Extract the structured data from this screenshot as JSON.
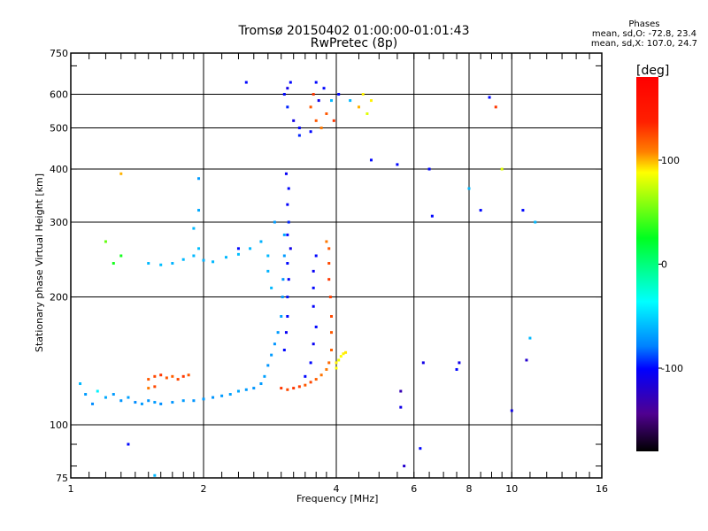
{
  "chart_data": {
    "type": "scatter",
    "title": "Tromsø 20150402 01:00:00-01:01:43",
    "subtitle": "RwPretec (8p)",
    "stats": {
      "heading": "Phases",
      "line_o": "mean, sd,O: -72.8, 23.4",
      "line_x": "mean, sd,X: 107.0, 24.7"
    },
    "xlabel": "Frequency [MHz]",
    "ylabel": "Stationary phase Virtual Height [km]",
    "xscale": "log",
    "yscale": "log",
    "xlim": [
      1,
      16
    ],
    "ylim": [
      75,
      750
    ],
    "xticks": [
      {
        "v": 1,
        "label": "1"
      },
      {
        "v": 2,
        "label": "2"
      },
      {
        "v": 4,
        "label": "4"
      },
      {
        "v": 6,
        "label": "6"
      },
      {
        "v": 8,
        "label": "8"
      },
      {
        "v": 10,
        "label": "10"
      },
      {
        "v": 16,
        "label": "16"
      }
    ],
    "xgrid": [
      2,
      4,
      6,
      8,
      10
    ],
    "yticks": [
      {
        "v": 75,
        "label": "75"
      },
      {
        "v": 100,
        "label": "100"
      },
      {
        "v": 200,
        "label": "200"
      },
      {
        "v": 300,
        "label": "300"
      },
      {
        "v": 400,
        "label": "400"
      },
      {
        "v": 500,
        "label": "500"
      },
      {
        "v": 600,
        "label": "600"
      },
      {
        "v": 750,
        "label": "750"
      }
    ],
    "ygrid": [
      100,
      200,
      300,
      400,
      500,
      600
    ],
    "colorbar": {
      "label": "[deg]",
      "range": [
        -180,
        180
      ],
      "ticks": [
        {
          "v": 100,
          "label": "100"
        },
        {
          "v": 0,
          "label": "0"
        },
        {
          "v": -100,
          "label": "-100"
        }
      ]
    },
    "points_fields": [
      "frequency_MHz",
      "height_km",
      "phase_deg"
    ],
    "points": [
      [
        1.05,
        125,
        -60
      ],
      [
        1.08,
        118,
        -70
      ],
      [
        1.12,
        112,
        -75
      ],
      [
        1.15,
        120,
        -40
      ],
      [
        1.2,
        116,
        -65
      ],
      [
        1.25,
        118,
        -70
      ],
      [
        1.3,
        114,
        -72
      ],
      [
        1.35,
        116,
        -68
      ],
      [
        1.4,
        113,
        -75
      ],
      [
        1.45,
        112,
        -70
      ],
      [
        1.5,
        114,
        -72
      ],
      [
        1.55,
        113,
        -70
      ],
      [
        1.6,
        112,
        -74
      ],
      [
        1.7,
        113,
        -72
      ],
      [
        1.8,
        114,
        -70
      ],
      [
        1.9,
        114,
        -72
      ],
      [
        2.0,
        115,
        -70
      ],
      [
        2.1,
        116,
        -72
      ],
      [
        2.2,
        117,
        -70
      ],
      [
        2.3,
        118,
        -68
      ],
      [
        2.4,
        120,
        -66
      ],
      [
        2.5,
        121,
        -70
      ],
      [
        2.6,
        122,
        -72
      ],
      [
        2.7,
        125,
        -70
      ],
      [
        2.75,
        130,
        -68
      ],
      [
        2.8,
        138,
        -72
      ],
      [
        2.85,
        146,
        -70
      ],
      [
        2.9,
        155,
        -72
      ],
      [
        2.95,
        165,
        -70
      ],
      [
        3.0,
        180,
        -68
      ],
      [
        3.02,
        200,
        -70
      ],
      [
        3.03,
        220,
        -72
      ],
      [
        3.05,
        250,
        -70
      ],
      [
        3.05,
        280,
        -66
      ],
      [
        2.9,
        300,
        -70
      ],
      [
        1.5,
        128,
        120
      ],
      [
        1.55,
        130,
        125
      ],
      [
        1.6,
        131,
        130
      ],
      [
        1.65,
        129,
        120
      ],
      [
        1.7,
        130,
        118
      ],
      [
        1.75,
        128,
        125
      ],
      [
        1.8,
        130,
        130
      ],
      [
        1.85,
        131,
        120
      ],
      [
        1.5,
        122,
        110
      ],
      [
        1.55,
        123,
        125
      ],
      [
        3.0,
        122,
        130
      ],
      [
        3.1,
        121,
        125
      ],
      [
        3.2,
        122,
        130
      ],
      [
        3.3,
        123,
        128
      ],
      [
        3.4,
        124,
        120
      ],
      [
        3.5,
        126,
        125
      ],
      [
        3.6,
        128,
        118
      ],
      [
        3.7,
        131,
        112
      ],
      [
        3.8,
        135,
        110
      ],
      [
        3.85,
        140,
        115
      ],
      [
        3.9,
        150,
        118
      ],
      [
        3.9,
        165,
        120
      ],
      [
        3.9,
        180,
        125
      ],
      [
        3.88,
        200,
        128
      ],
      [
        3.85,
        220,
        130
      ],
      [
        3.85,
        240,
        125
      ],
      [
        3.85,
        260,
        120
      ],
      [
        3.8,
        270,
        110
      ],
      [
        4.0,
        140,
        90
      ],
      [
        4.05,
        142,
        85
      ],
      [
        4.1,
        145,
        88
      ],
      [
        4.15,
        147,
        90
      ],
      [
        4.2,
        148,
        92
      ],
      [
        4.0,
        136,
        88
      ],
      [
        3.05,
        150,
        -100
      ],
      [
        3.08,
        165,
        -105
      ],
      [
        3.1,
        180,
        -100
      ],
      [
        3.1,
        200,
        -98
      ],
      [
        3.12,
        220,
        -105
      ],
      [
        3.1,
        240,
        -100
      ],
      [
        3.15,
        260,
        -110
      ],
      [
        3.1,
        280,
        -100
      ],
      [
        3.12,
        300,
        -95
      ],
      [
        3.1,
        330,
        -102
      ],
      [
        3.12,
        360,
        -100
      ],
      [
        3.08,
        390,
        -105
      ],
      [
        3.5,
        140,
        -100
      ],
      [
        3.55,
        155,
        -105
      ],
      [
        3.6,
        170,
        -100
      ],
      [
        3.55,
        190,
        -102
      ],
      [
        3.55,
        210,
        -100
      ],
      [
        3.55,
        230,
        -105
      ],
      [
        3.6,
        250,
        -100
      ],
      [
        3.4,
        130,
        -100
      ],
      [
        1.5,
        240,
        -60
      ],
      [
        1.6,
        238,
        -58
      ],
      [
        1.7,
        240,
        -62
      ],
      [
        1.8,
        245,
        -60
      ],
      [
        1.9,
        250,
        -60
      ],
      [
        1.95,
        260,
        -58
      ],
      [
        2.0,
        244,
        -62
      ],
      [
        2.1,
        242,
        -60
      ],
      [
        2.25,
        248,
        -60
      ],
      [
        2.4,
        252,
        -58
      ],
      [
        2.55,
        260,
        -60
      ],
      [
        2.7,
        270,
        -62
      ],
      [
        2.8,
        250,
        -60
      ],
      [
        2.8,
        230,
        -62
      ],
      [
        2.85,
        210,
        -60
      ],
      [
        1.9,
        290,
        -60
      ],
      [
        1.95,
        320,
        -65
      ],
      [
        1.95,
        380,
        -70
      ],
      [
        3.05,
        600,
        -100
      ],
      [
        3.1,
        620,
        -110
      ],
      [
        3.15,
        640,
        -100
      ],
      [
        3.1,
        560,
        -95
      ],
      [
        3.2,
        520,
        -110
      ],
      [
        3.3,
        500,
        -100
      ],
      [
        3.5,
        560,
        120
      ],
      [
        3.55,
        600,
        130
      ],
      [
        3.6,
        640,
        -100
      ],
      [
        3.65,
        580,
        -110
      ],
      [
        3.6,
        520,
        120
      ],
      [
        3.7,
        500,
        110
      ],
      [
        3.8,
        540,
        120
      ],
      [
        3.75,
        620,
        -100
      ],
      [
        3.9,
        580,
        -60
      ],
      [
        3.95,
        520,
        130
      ],
      [
        4.05,
        600,
        -100
      ],
      [
        4.3,
        580,
        -60
      ],
      [
        4.5,
        560,
        100
      ],
      [
        4.6,
        600,
        90
      ],
      [
        4.7,
        540,
        80
      ],
      [
        4.8,
        580,
        90
      ],
      [
        3.3,
        480,
        -95
      ],
      [
        3.5,
        490,
        -100
      ],
      [
        1.3,
        390,
        100
      ],
      [
        1.3,
        250,
        30
      ],
      [
        1.2,
        270,
        50
      ],
      [
        1.25,
        240,
        30
      ],
      [
        1.35,
        90,
        -100
      ],
      [
        1.55,
        76,
        -60
      ],
      [
        2.5,
        640,
        -100
      ],
      [
        2.4,
        260,
        -100
      ],
      [
        4.8,
        420,
        -100
      ],
      [
        5.5,
        410,
        -100
      ],
      [
        5.6,
        120,
        -130
      ],
      [
        5.6,
        110,
        -110
      ],
      [
        5.7,
        80,
        -120
      ],
      [
        6.2,
        88,
        -100
      ],
      [
        6.3,
        140,
        -110
      ],
      [
        6.5,
        400,
        -100
      ],
      [
        6.6,
        310,
        -100
      ],
      [
        7.5,
        135,
        -100
      ],
      [
        7.6,
        140,
        -110
      ],
      [
        8.0,
        360,
        -60
      ],
      [
        8.5,
        320,
        -100
      ],
      [
        8.9,
        590,
        -100
      ],
      [
        9.2,
        560,
        130
      ],
      [
        9.5,
        400,
        80
      ],
      [
        10.0,
        108,
        -110
      ],
      [
        10.8,
        142,
        -120
      ],
      [
        10.6,
        320,
        -100
      ],
      [
        11.0,
        160,
        -60
      ],
      [
        11.3,
        300,
        -60
      ]
    ]
  }
}
